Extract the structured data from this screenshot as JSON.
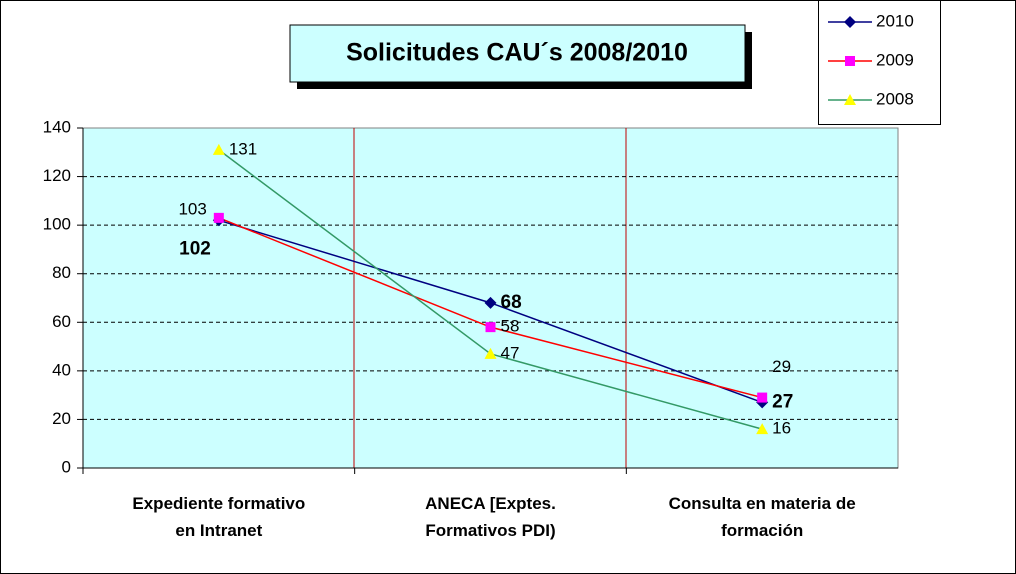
{
  "chart_data": {
    "type": "line",
    "title": "Solicitudes CAU´s 2008/2010",
    "categories": [
      "Expediente formativo\nen Intranet",
      "ANECA [Exptes.\nFormativos PDI)",
      "Consulta en materia de\nformación"
    ],
    "series": [
      {
        "name": "2010",
        "color": "#000080",
        "marker": "diamond",
        "values": [
          102,
          68,
          27
        ]
      },
      {
        "name": "2009",
        "color": "#ff0000",
        "marker_color": "#ff00ff",
        "marker": "square",
        "values": [
          103,
          58,
          29
        ]
      },
      {
        "name": "2008",
        "color": "#339966",
        "marker_color": "#ffff00",
        "marker": "triangle",
        "values": [
          131,
          47,
          16
        ]
      }
    ],
    "ylim": [
      0,
      140
    ],
    "yticks": [
      0,
      20,
      40,
      60,
      80,
      100,
      120,
      140
    ],
    "grid": true,
    "legend": "top-right"
  }
}
